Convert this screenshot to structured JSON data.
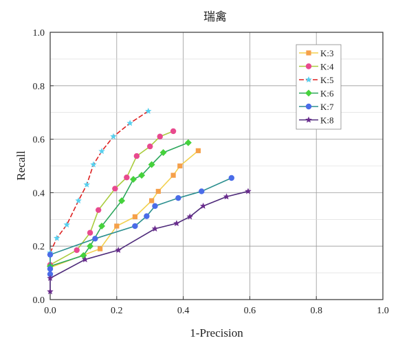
{
  "chart_data": {
    "type": "line",
    "title": "瑞禽",
    "xlabel": "1-Precision",
    "ylabel": "Recall",
    "xlim": [
      0,
      1
    ],
    "ylim": [
      0,
      1
    ],
    "x_ticks": [
      "0.0",
      "0.2",
      "0.4",
      "0.6",
      "0.8",
      "1.0"
    ],
    "y_ticks": [
      "0.0",
      "0.2",
      "0.4",
      "0.6",
      "0.8",
      "1.0"
    ],
    "grid": true,
    "legend_position": "top-right",
    "series": [
      {
        "name": "K:3",
        "color": "#F5A04A",
        "line_color": "#F2D04C",
        "marker": "square",
        "x": [
          0.0,
          0.15,
          0.2,
          0.255,
          0.305,
          0.325,
          0.37,
          0.39,
          0.445
        ],
        "y": [
          0.12,
          0.19,
          0.275,
          0.31,
          0.37,
          0.405,
          0.465,
          0.5,
          0.557
        ]
      },
      {
        "name": "K:4",
        "color": "#E84A8E",
        "line_color": "#A9CC3C",
        "marker": "circle",
        "x": [
          0.0,
          0.08,
          0.12,
          0.145,
          0.195,
          0.23,
          0.26,
          0.3,
          0.33,
          0.37
        ],
        "y": [
          0.13,
          0.185,
          0.25,
          0.335,
          0.415,
          0.457,
          0.537,
          0.573,
          0.61,
          0.63
        ]
      },
      {
        "name": "K:5",
        "color": "#58D0EE",
        "line_color": "#DD1F1F",
        "marker": "star",
        "x": [
          0.0,
          0.02,
          0.05,
          0.085,
          0.11,
          0.13,
          0.155,
          0.19,
          0.24,
          0.295
        ],
        "y": [
          0.175,
          0.23,
          0.28,
          0.37,
          0.43,
          0.505,
          0.555,
          0.61,
          0.66,
          0.705
        ]
      },
      {
        "name": "K:6",
        "color": "#45D23C",
        "line_color": "#2AA65A",
        "marker": "diamond",
        "x": [
          0.0,
          0.1,
          0.12,
          0.155,
          0.215,
          0.25,
          0.275,
          0.305,
          0.34,
          0.415
        ],
        "y": [
          0.125,
          0.165,
          0.2,
          0.275,
          0.37,
          0.45,
          0.465,
          0.505,
          0.55,
          0.587
        ]
      },
      {
        "name": "K:7",
        "color": "#4A6CE8",
        "line_color": "#2B8F8F",
        "marker": "circle",
        "x": [
          0.0,
          0.0,
          0.0,
          0.135,
          0.255,
          0.29,
          0.315,
          0.385,
          0.455,
          0.545
        ],
        "y": [
          0.095,
          0.115,
          0.168,
          0.228,
          0.275,
          0.312,
          0.35,
          0.38,
          0.405,
          0.455
        ]
      },
      {
        "name": "K:8",
        "color": "#6A2C8E",
        "line_color": "#4E2A7A",
        "marker": "star",
        "x": [
          0.0,
          0.0,
          0.105,
          0.205,
          0.315,
          0.38,
          0.42,
          0.46,
          0.53,
          0.595
        ],
        "y": [
          0.03,
          0.08,
          0.15,
          0.185,
          0.265,
          0.285,
          0.31,
          0.35,
          0.385,
          0.405
        ]
      }
    ]
  }
}
